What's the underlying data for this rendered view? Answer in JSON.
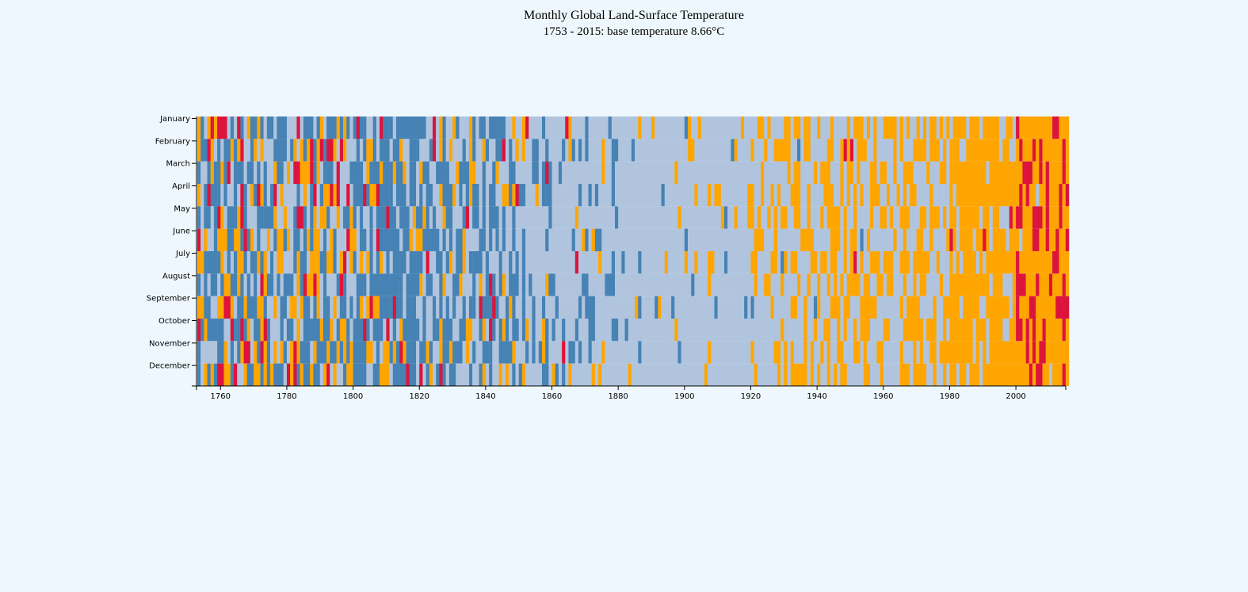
{
  "chart_data": {
    "type": "heatmap",
    "title": "Monthly Global Land-Surface Temperature",
    "subtitle": "1753 - 2015: base temperature 8.66°C",
    "base_temperature": 8.66,
    "x_range": [
      1753,
      2015
    ],
    "x_ticks": [
      1760,
      1780,
      1800,
      1820,
      1840,
      1860,
      1880,
      1900,
      1920,
      1940,
      1960,
      1980,
      2000
    ],
    "months": [
      "January",
      "February",
      "March",
      "April",
      "May",
      "June",
      "July",
      "August",
      "September",
      "October",
      "November",
      "December"
    ],
    "colors": {
      "much_colder": "#4682b4",
      "near_base": "#b0c4de",
      "warmer": "#ffa500",
      "much_warmer": "#dc143c"
    },
    "levels": [
      "much_colder",
      "near_base",
      "warmer",
      "much_warmer"
    ],
    "decades": [
      {
        "start": 1753,
        "end": 1799,
        "distribution": {
          "much_colder": 0.38,
          "near_base": 0.27,
          "warmer": 0.24,
          "much_warmer": 0.11
        }
      },
      {
        "start": 1800,
        "end": 1819,
        "distribution": {
          "much_colder": 0.55,
          "near_base": 0.23,
          "warmer": 0.17,
          "much_warmer": 0.05
        }
      },
      {
        "start": 1820,
        "end": 1849,
        "distribution": {
          "much_colder": 0.48,
          "near_base": 0.36,
          "warmer": 0.13,
          "much_warmer": 0.03
        }
      },
      {
        "start": 1850,
        "end": 1879,
        "distribution": {
          "much_colder": 0.22,
          "near_base": 0.68,
          "warmer": 0.09,
          "much_warmer": 0.01
        }
      },
      {
        "start": 1880,
        "end": 1919,
        "distribution": {
          "much_colder": 0.05,
          "near_base": 0.87,
          "warmer": 0.08,
          "much_warmer": 0.0
        }
      },
      {
        "start": 1920,
        "end": 1939,
        "distribution": {
          "much_colder": 0.02,
          "near_base": 0.65,
          "warmer": 0.33,
          "much_warmer": 0.0
        }
      },
      {
        "start": 1940,
        "end": 1959,
        "distribution": {
          "much_colder": 0.01,
          "near_base": 0.52,
          "warmer": 0.46,
          "much_warmer": 0.01
        }
      },
      {
        "start": 1960,
        "end": 1979,
        "distribution": {
          "much_colder": 0.0,
          "near_base": 0.53,
          "warmer": 0.47,
          "much_warmer": 0.0
        }
      },
      {
        "start": 1980,
        "end": 1999,
        "distribution": {
          "much_colder": 0.0,
          "near_base": 0.17,
          "warmer": 0.81,
          "much_warmer": 0.02
        }
      },
      {
        "start": 2000,
        "end": 2015,
        "distribution": {
          "much_colder": 0.0,
          "near_base": 0.02,
          "warmer": 0.66,
          "much_warmer": 0.32
        }
      }
    ]
  }
}
